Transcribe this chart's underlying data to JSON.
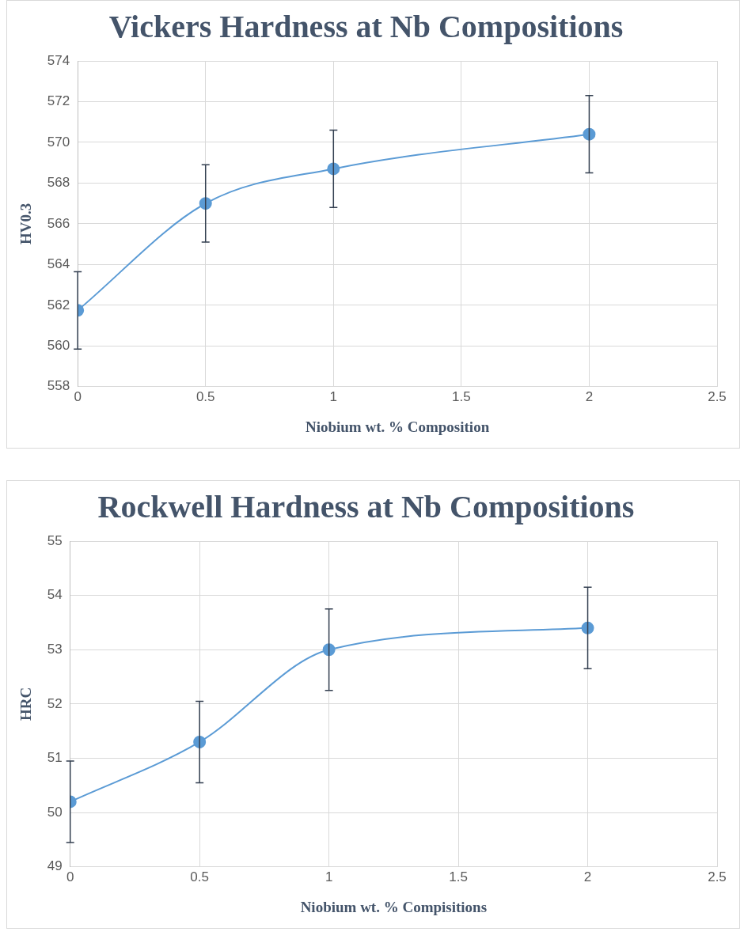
{
  "chart_data": [
    {
      "type": "line",
      "title": "Vickers Hardness at Nb Compositions",
      "xlabel": "Niobium wt. % Composition",
      "ylabel": "HV0.3",
      "x": [
        0,
        0.5,
        1,
        2
      ],
      "series": [
        {
          "color": "#5b9bd5",
          "values": [
            561.75,
            567.0,
            568.7,
            570.4
          ],
          "errors": [
            1.9,
            1.9,
            1.9,
            1.9
          ]
        }
      ],
      "xlim": [
        0,
        2.5
      ],
      "xticks": [
        0,
        0.5,
        1,
        1.5,
        2,
        2.5
      ],
      "ylim": [
        558,
        574
      ],
      "yticks": [
        558,
        560,
        562,
        564,
        566,
        568,
        570,
        572,
        574
      ],
      "grid": true,
      "legend": false,
      "marker": "circle",
      "line_style": "solid"
    },
    {
      "type": "line",
      "title": "Rockwell Hardness at Nb Compositions",
      "xlabel": "Niobium wt. % Compisitions",
      "ylabel": "HRC",
      "x": [
        0,
        0.5,
        1,
        2
      ],
      "series": [
        {
          "color": "#5b9bd5",
          "values": [
            50.2,
            51.3,
            53.0,
            53.4
          ],
          "errors": [
            0.75,
            0.75,
            0.75,
            0.75
          ]
        }
      ],
      "xlim": [
        0,
        2.5
      ],
      "xticks": [
        0,
        0.5,
        1,
        1.5,
        2,
        2.5
      ],
      "ylim": [
        49,
        55
      ],
      "yticks": [
        49,
        50,
        51,
        52,
        53,
        54,
        55
      ],
      "grid": true,
      "legend": false,
      "marker": "circle",
      "line_style": "solid"
    }
  ]
}
